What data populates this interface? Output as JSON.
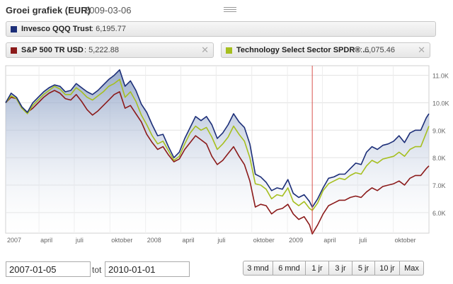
{
  "header": {
    "title": "Groei grafiek (EUR)",
    "date": "2009-03-06"
  },
  "legend": [
    {
      "name": "Invesco QQQ Trust",
      "value": ": 6,195.77",
      "color": "#1c2e78",
      "closable": false
    },
    {
      "name": "S&P 500 TR USD",
      "value": ": 5,222.88",
      "color": "#8b1a1a",
      "closable": true
    },
    {
      "name": "Technology Select Sector SPDR® ...",
      "value": ": 6,075.46",
      "color": "#a6bf1f",
      "closable": true
    }
  ],
  "controls": {
    "start_date": "2007-01-05",
    "to_label": "tot",
    "end_date": "2010-01-01",
    "ranges": [
      "3 mnd",
      "6 mnd",
      "1 jr",
      "3 jr",
      "5 jr",
      "10 jr",
      "Max"
    ]
  },
  "chart_data": {
    "type": "line",
    "title": "",
    "xlabel": "",
    "ylabel": "",
    "x_start": "2007-01-05",
    "x_end": "2010-01-01",
    "x_ticks": [
      {
        "label": "2007",
        "date": "2007-01-01"
      },
      {
        "label": "april",
        "date": "2007-04-01"
      },
      {
        "label": "juli",
        "date": "2007-07-01"
      },
      {
        "label": "oktober",
        "date": "2007-10-01"
      },
      {
        "label": "2008",
        "date": "2008-01-01"
      },
      {
        "label": "april",
        "date": "2008-04-01"
      },
      {
        "label": "juli",
        "date": "2008-07-01"
      },
      {
        "label": "oktober",
        "date": "2008-10-01"
      },
      {
        "label": "2009",
        "date": "2009-01-01"
      },
      {
        "label": "april",
        "date": "2009-04-01"
      },
      {
        "label": "juli",
        "date": "2009-07-01"
      },
      {
        "label": "oktober",
        "date": "2009-10-01"
      }
    ],
    "y_ticks": [
      6000,
      7000,
      8000,
      9000,
      10000,
      11000
    ],
    "y_tick_labels": [
      "6.0K",
      "7.0K",
      "8.0K",
      "9.0K",
      "10.0K",
      "11.0K"
    ],
    "ylim": [
      5250,
      11350
    ],
    "grid": true,
    "marker_date": "2009-03-06",
    "dates": [
      "2007-01-05",
      "2007-01-19",
      "2007-02-02",
      "2007-02-16",
      "2007-03-02",
      "2007-03-16",
      "2007-03-30",
      "2007-04-13",
      "2007-04-27",
      "2007-05-11",
      "2007-05-25",
      "2007-06-08",
      "2007-06-22",
      "2007-07-06",
      "2007-07-20",
      "2007-08-03",
      "2007-08-17",
      "2007-08-31",
      "2007-09-14",
      "2007-09-28",
      "2007-10-12",
      "2007-10-26",
      "2007-11-09",
      "2007-11-23",
      "2007-12-07",
      "2007-12-21",
      "2008-01-04",
      "2008-01-18",
      "2008-02-01",
      "2008-02-15",
      "2008-02-29",
      "2008-03-14",
      "2008-03-28",
      "2008-04-11",
      "2008-04-25",
      "2008-05-09",
      "2008-05-23",
      "2008-06-06",
      "2008-06-20",
      "2008-07-04",
      "2008-07-18",
      "2008-08-01",
      "2008-08-15",
      "2008-08-29",
      "2008-09-12",
      "2008-09-26",
      "2008-10-10",
      "2008-10-24",
      "2008-11-07",
      "2008-11-21",
      "2008-12-05",
      "2008-12-19",
      "2009-01-02",
      "2009-01-16",
      "2009-01-30",
      "2009-02-13",
      "2009-02-27",
      "2009-03-06",
      "2009-03-20",
      "2009-04-03",
      "2009-04-17",
      "2009-05-01",
      "2009-05-15",
      "2009-05-29",
      "2009-06-12",
      "2009-06-26",
      "2009-07-10",
      "2009-07-24",
      "2009-08-07",
      "2009-08-21",
      "2009-09-04",
      "2009-09-18",
      "2009-10-02",
      "2009-10-16",
      "2009-10-30",
      "2009-11-13",
      "2009-11-27",
      "2009-12-11",
      "2009-12-25",
      "2010-01-01"
    ],
    "series": [
      {
        "name": "Invesco QQQ Trust",
        "color": "#1c2e78",
        "values": [
          10000,
          10350,
          10200,
          9850,
          9650,
          10000,
          10200,
          10400,
          10550,
          10650,
          10600,
          10400,
          10450,
          10700,
          10550,
          10400,
          10300,
          10450,
          10650,
          10850,
          11000,
          11200,
          10600,
          10800,
          10450,
          9950,
          9650,
          9200,
          8800,
          8850,
          8400,
          8000,
          8200,
          8700,
          9100,
          9500,
          9350,
          9500,
          9200,
          8700,
          8900,
          9200,
          9600,
          9300,
          9100,
          8500,
          7400,
          7300,
          7100,
          6800,
          6900,
          6850,
          7200,
          6700,
          6550,
          6650,
          6400,
          6195,
          6500,
          6900,
          7250,
          7300,
          7400,
          7400,
          7600,
          7800,
          7750,
          8200,
          8400,
          8300,
          8450,
          8500,
          8600,
          8800,
          8550,
          8900,
          9000,
          9000,
          9450,
          9600
        ]
      },
      {
        "name": "S&P 500 TR USD",
        "color": "#8b1a1a",
        "values": [
          10000,
          10200,
          10150,
          9800,
          9650,
          9800,
          10000,
          10200,
          10350,
          10450,
          10350,
          10150,
          10100,
          10300,
          10050,
          9750,
          9550,
          9700,
          9900,
          10100,
          10300,
          10400,
          9800,
          9900,
          9600,
          9300,
          8850,
          8550,
          8300,
          8400,
          8100,
          7850,
          7950,
          8300,
          8550,
          8800,
          8650,
          8500,
          8050,
          7750,
          7900,
          8150,
          8400,
          8050,
          7750,
          7150,
          6200,
          6300,
          6250,
          5950,
          6100,
          6150,
          6300,
          5950,
          5750,
          5850,
          5550,
          5222,
          5550,
          5950,
          6250,
          6350,
          6450,
          6450,
          6550,
          6600,
          6550,
          6750,
          6900,
          6800,
          6950,
          7000,
          7050,
          7150,
          7000,
          7250,
          7350,
          7350,
          7600,
          7700
        ]
      },
      {
        "name": "Technology Select Sector SPDR® ...",
        "color": "#a6bf1f",
        "values": [
          10000,
          10250,
          10150,
          9800,
          9600,
          9900,
          10100,
          10300,
          10450,
          10600,
          10500,
          10300,
          10300,
          10550,
          10400,
          10200,
          10100,
          10250,
          10400,
          10600,
          10700,
          10850,
          10200,
          10400,
          10050,
          9550,
          9200,
          8800,
          8500,
          8600,
          8250,
          7900,
          8050,
          8500,
          8900,
          9150,
          9000,
          9100,
          8750,
          8300,
          8500,
          8750,
          9150,
          8850,
          8600,
          8000,
          7050,
          7000,
          6850,
          6500,
          6650,
          6600,
          6900,
          6400,
          6250,
          6400,
          6150,
          6075,
          6350,
          6800,
          7050,
          7150,
          7250,
          7200,
          7350,
          7450,
          7400,
          7700,
          7900,
          7800,
          7950,
          8000,
          8050,
          8200,
          8050,
          8300,
          8400,
          8400,
          8900,
          9150
        ]
      }
    ]
  }
}
